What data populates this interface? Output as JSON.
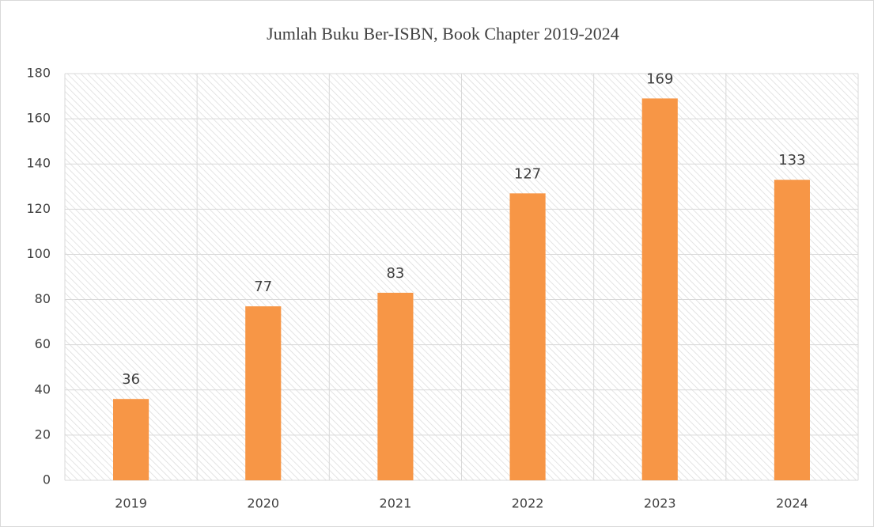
{
  "chart_data": {
    "type": "bar",
    "title": "Jumlah Buku Ber-ISBN, Book Chapter 2019-2024",
    "categories": [
      "2019",
      "2020",
      "2021",
      "2022",
      "2023",
      "2024"
    ],
    "values": [
      36,
      77,
      83,
      127,
      169,
      133
    ],
    "color": "#f79646",
    "ylim": [
      0,
      180
    ],
    "yticks": [
      0,
      20,
      40,
      60,
      80,
      100,
      120,
      140,
      160,
      180
    ],
    "grid": true,
    "data_labels": true
  }
}
